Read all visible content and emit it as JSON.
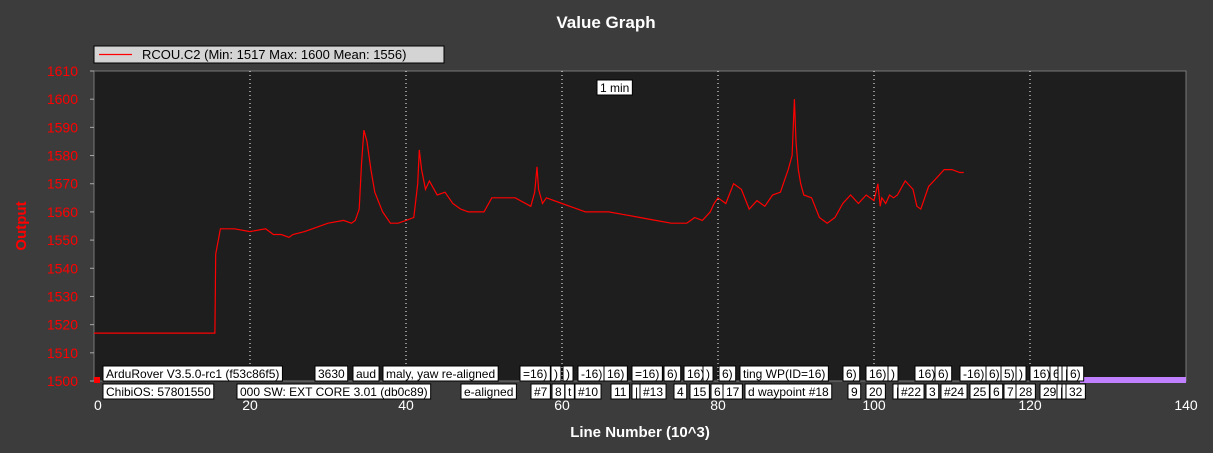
{
  "window": {
    "title": "Value Graph"
  },
  "colors": {
    "background": "#3c3c3c",
    "plot_background": "#1e1e1e",
    "series": "#ff0000",
    "x_axis_text": "#ffffff",
    "y_axis_text": "#ff0000",
    "grid": "#ffffff",
    "event_band": "#c080ff"
  },
  "chart_data": {
    "type": "line",
    "title": "Value Graph",
    "xlabel": "Line Number (10^3)",
    "ylabel": "Output",
    "xlim": [
      0,
      140
    ],
    "ylim": [
      1500,
      1610
    ],
    "x_ticks": [
      0,
      20,
      40,
      60,
      80,
      100,
      120,
      140
    ],
    "y_ticks": [
      1500,
      1510,
      1520,
      1530,
      1540,
      1550,
      1560,
      1570,
      1580,
      1590,
      1600,
      1610
    ],
    "grid": "vertical dotted lines at x tick positions",
    "legend_position": "top-left",
    "series": [
      {
        "name": "RCOU.C2 (Min: 1517 Max: 1600 Mean: 1556)",
        "x": [
          0,
          15.5,
          15.6,
          16.2,
          16.6,
          18,
          20,
          22,
          23,
          24,
          25,
          25.5,
          27,
          28,
          30,
          32,
          33,
          33.5,
          34,
          34.3,
          34.6,
          35,
          35.5,
          36,
          37,
          38,
          39,
          40,
          41,
          41.5,
          41.7,
          42,
          42.5,
          43,
          44,
          45,
          46,
          47,
          48,
          50,
          51,
          52,
          54,
          56,
          56.5,
          56.8,
          57,
          57.5,
          58,
          60,
          61,
          62,
          63,
          65,
          66,
          68,
          70,
          72,
          74,
          76,
          76.5,
          77,
          78,
          79,
          79.5,
          80,
          81,
          82,
          83,
          84,
          85,
          86,
          87,
          88,
          89,
          89.5,
          89.8,
          90,
          90.3,
          90.6,
          91,
          92,
          93,
          94,
          95,
          96,
          97,
          98,
          99,
          100,
          100.5,
          100.8,
          101,
          101.5,
          102,
          102.5,
          103,
          104,
          105,
          105.5,
          106,
          107,
          108,
          109,
          109.5,
          110,
          111,
          111.5
        ],
        "y": [
          1517,
          1517,
          1545,
          1554,
          1554,
          1554,
          1553,
          1554,
          1552,
          1552,
          1551,
          1552,
          1553,
          1554,
          1556,
          1557,
          1556,
          1557,
          1561,
          1577,
          1589,
          1585,
          1575,
          1567,
          1560,
          1556,
          1556,
          1557,
          1558,
          1570,
          1582,
          1575,
          1568,
          1571,
          1566,
          1567,
          1563,
          1561,
          1560,
          1560,
          1565,
          1565,
          1565,
          1562,
          1567,
          1576,
          1568,
          1563,
          1565,
          1563,
          1562,
          1561,
          1560,
          1560,
          1560,
          1559,
          1558,
          1557,
          1556,
          1556,
          1557,
          1558,
          1557,
          1560,
          1563,
          1565,
          1563,
          1570,
          1568,
          1561,
          1564,
          1562,
          1566,
          1567,
          1575,
          1580,
          1600,
          1585,
          1575,
          1570,
          1566,
          1565,
          1558,
          1556,
          1558,
          1563,
          1566,
          1563,
          1566,
          1564,
          1570,
          1562,
          1565,
          1563,
          1566,
          1565,
          1566,
          1571,
          1568,
          1562,
          1561,
          1569,
          1572,
          1575,
          1575,
          1575,
          1574,
          1574
        ]
      }
    ],
    "annotations": [
      {
        "text": "1 min"
      },
      {
        "text": "ArduRover V3.5.0-rc1 (f53c86f5)"
      },
      {
        "text": "3630"
      },
      {
        "text": "aud"
      },
      {
        "text": "maly, yaw re-aligned"
      },
      {
        "text": "=16)"
      },
      {
        "text": ")"
      },
      {
        "text": ")"
      },
      {
        "text": "-16)"
      },
      {
        "text": "16)"
      },
      {
        "text": "=16)"
      },
      {
        "text": "6)"
      },
      {
        "text": "16)"
      },
      {
        "text": ")"
      },
      {
        "text": "6)"
      },
      {
        "text": "ting WP(ID=16)"
      },
      {
        "text": "6)"
      },
      {
        "text": "16)"
      },
      {
        "text": ")"
      },
      {
        "text": "16)"
      },
      {
        "text": "6)"
      },
      {
        "text": "-16)"
      },
      {
        "text": "6)"
      },
      {
        "text": "5)"
      },
      {
        "text": ")"
      },
      {
        "text": "16)"
      },
      {
        "text": "6)"
      },
      {
        "text": "|"
      },
      {
        "text": "|"
      },
      {
        "text": "6)"
      },
      {
        "text": "ChibiOS: 57801550"
      },
      {
        "text": "000 SW: EXT CORE 3.01 (db0c89)"
      },
      {
        "text": "e-aligned"
      },
      {
        "text": "#7"
      },
      {
        "text": "8"
      },
      {
        "text": "t"
      },
      {
        "text": "#10"
      },
      {
        "text": "11"
      },
      {
        "text": "|"
      },
      {
        "text": "#13"
      },
      {
        "text": "4"
      },
      {
        "text": "15"
      },
      {
        "text": "6"
      },
      {
        "text": "17"
      },
      {
        "text": "d waypoint #18"
      },
      {
        "text": "9"
      },
      {
        "text": "20"
      },
      {
        "text": "|"
      },
      {
        "text": "#22"
      },
      {
        "text": "3"
      },
      {
        "text": "#24"
      },
      {
        "text": "25"
      },
      {
        "text": "6"
      },
      {
        "text": "7"
      },
      {
        "text": "28"
      },
      {
        "text": "29"
      },
      {
        "text": "|"
      },
      {
        "text": "|"
      },
      {
        "text": "32"
      }
    ]
  }
}
